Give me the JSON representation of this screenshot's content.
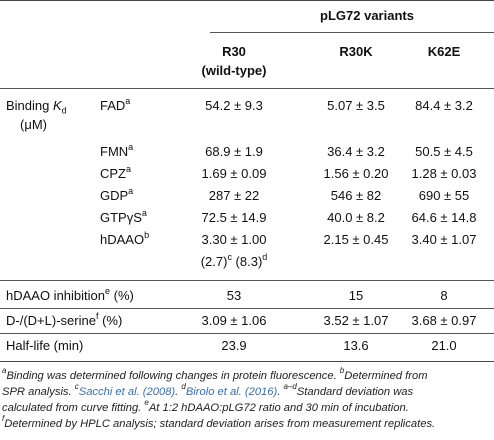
{
  "header": {
    "group": "pLG72 variants",
    "col1_line1": "R30",
    "col1_line2": "(wild-type)",
    "col2": "R30K",
    "col3": "K62E"
  },
  "binding_group": {
    "label_main": "Binding ",
    "label_k": "K",
    "label_sub": "d",
    "unit": "(μM)"
  },
  "binding_rows": [
    {
      "name": "FAD",
      "sup": "a",
      "values": [
        "54.2 ± 9.3",
        "5.07 ± 3.5",
        "84.4 ± 3.2"
      ]
    },
    {
      "name": "FMN",
      "sup": "a",
      "values": [
        "68.9 ± 1.9",
        "36.4 ± 3.2",
        "50.5 ± 4.5"
      ]
    },
    {
      "name": "CPZ",
      "sup": "a",
      "values": [
        "1.69 ± 0.09",
        "1.56 ± 0.20",
        "1.28 ± 0.03"
      ]
    },
    {
      "name": "GDP",
      "sup": "a",
      "values": [
        "287 ± 22",
        "546 ± 82",
        "690 ± 55"
      ]
    },
    {
      "name": "GTPγS",
      "sup": "a",
      "values": [
        "72.5 ± 14.9",
        "40.0 ± 8.2",
        "64.6 ± 14.8"
      ]
    },
    {
      "name": "hDAAO",
      "sup": "b",
      "values": [
        "3.30 ± 1.00",
        "2.15 ± 0.45",
        "3.40 ± 1.07"
      ]
    }
  ],
  "hdaao_extra": {
    "part1": "(2.7)",
    "sup1": "c",
    "part2": " (8.3)",
    "sup2": "d"
  },
  "other_rows": [
    {
      "label": "hDAAO inhibition",
      "sup": "e",
      "unit": " (%)",
      "values": [
        "53",
        "15",
        "8"
      ]
    },
    {
      "label": "D-/(D+L)-serine",
      "sup": "f",
      "unit": " (%)",
      "values": [
        "3.09 ± 1.06",
        "3.52 ± 1.07",
        "3.68 ± 0.97"
      ]
    },
    {
      "label": "Half-life (min)",
      "sup": "",
      "unit": "",
      "values": [
        "23.9",
        "13.6",
        "21.0"
      ]
    }
  ],
  "footnotes": {
    "a_sup": "a",
    "a_text": "Binding was determined following changes in protein fluorescence. ",
    "b_sup": "b",
    "b_text": "Determined from",
    "line2_text": "SPR analysis. ",
    "c_sup": "c",
    "c_link": "Sacchi et al. (2008)",
    "c_after": ". ",
    "d_sup": "d",
    "d_link": "Birolo et al. (2016)",
    "d_after": ". ",
    "ad_sup": "a–d",
    "ad_text": "Standard deviation was",
    "line3_text": "calculated from curve fitting. ",
    "e_sup": "e",
    "e_text": "At 1:2 hDAAO:pLG72 ratio and 30 min of incubation.",
    "f_sup": "f",
    "f_text": "Determined by HPLC analysis; standard deviation arises from measurement replicates."
  }
}
